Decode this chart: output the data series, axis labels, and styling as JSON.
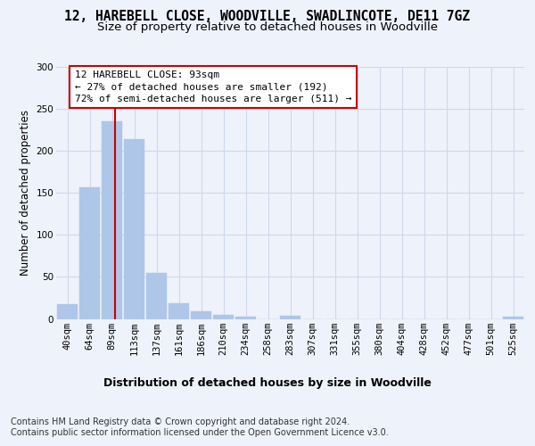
{
  "title": "12, HAREBELL CLOSE, WOODVILLE, SWADLINCOTE, DE11 7GZ",
  "subtitle": "Size of property relative to detached houses in Woodville",
  "xlabel": "Distribution of detached houses by size in Woodville",
  "ylabel": "Number of detached properties",
  "bar_color": "#aec6e8",
  "grid_color": "#ced8ed",
  "background_color": "#eef2fa",
  "categories": [
    "40sqm",
    "64sqm",
    "89sqm",
    "113sqm",
    "137sqm",
    "161sqm",
    "186sqm",
    "210sqm",
    "234sqm",
    "258sqm",
    "283sqm",
    "307sqm",
    "331sqm",
    "355sqm",
    "380sqm",
    "404sqm",
    "428sqm",
    "452sqm",
    "477sqm",
    "501sqm",
    "525sqm"
  ],
  "values": [
    17,
    157,
    235,
    214,
    55,
    19,
    9,
    5,
    3,
    0,
    4,
    0,
    0,
    0,
    0,
    0,
    0,
    0,
    0,
    0,
    3
  ],
  "annotation_line1": "12 HAREBELL CLOSE: 93sqm",
  "annotation_line2": "← 27% of detached houses are smaller (192)",
  "annotation_line3": "72% of semi-detached houses are larger (511) →",
  "annotation_box_facecolor": "#ffffff",
  "annotation_box_edgecolor": "#cc0000",
  "red_line_color": "#cc0000",
  "ylim_max": 300,
  "yticks": [
    0,
    50,
    100,
    150,
    200,
    250,
    300
  ],
  "footer_line1": "Contains HM Land Registry data © Crown copyright and database right 2024.",
  "footer_line2": "Contains public sector information licensed under the Open Government Licence v3.0.",
  "title_fontsize": 10.5,
  "subtitle_fontsize": 9.5,
  "xlabel_fontsize": 9,
  "ylabel_fontsize": 8.5,
  "tick_fontsize": 7.5,
  "annotation_fontsize": 8,
  "footer_fontsize": 7,
  "red_line_xbin": 2.15
}
